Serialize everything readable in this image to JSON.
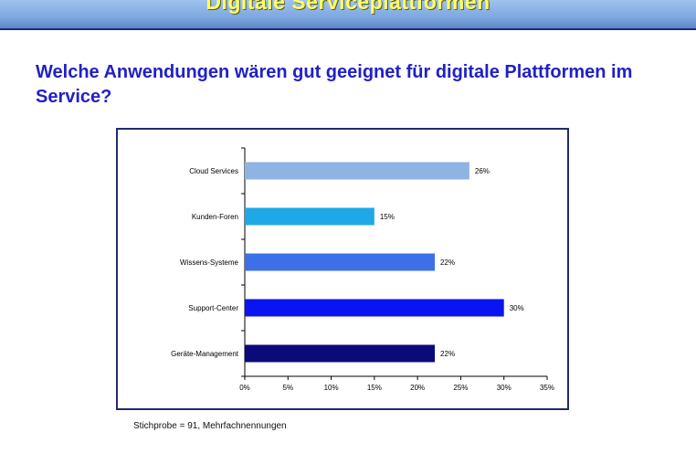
{
  "header": {
    "title": "Digitale Serviceplattformen"
  },
  "question": "Welche Anwendungen wären gut geeignet für digitale Plattformen im Service?",
  "footnote": "Stichprobe = 91, Mehrfachnennungen",
  "chart_data": {
    "type": "bar",
    "orientation": "horizontal",
    "title": "",
    "xlabel": "",
    "ylabel": "",
    "categories": [
      "Cloud Services",
      "Kunden-Foren",
      "Wissens-Systeme",
      "Support-Center",
      "Geräte-Management"
    ],
    "values": [
      26,
      15,
      22,
      30,
      22
    ],
    "data_labels": [
      "26%",
      "15%",
      "22%",
      "30%",
      "22%"
    ],
    "bar_colors": [
      "#8fb4e3",
      "#1fa8e6",
      "#3d6fe8",
      "#0a14f0",
      "#0a0a78"
    ],
    "xlim": [
      0,
      35
    ],
    "x_ticks": [
      0,
      5,
      10,
      15,
      20,
      25,
      30,
      35
    ],
    "x_tick_labels": [
      "0%",
      "5%",
      "10%",
      "15%",
      "20%",
      "25%",
      "30%",
      "35%"
    ],
    "grid": false,
    "legend": "none"
  }
}
